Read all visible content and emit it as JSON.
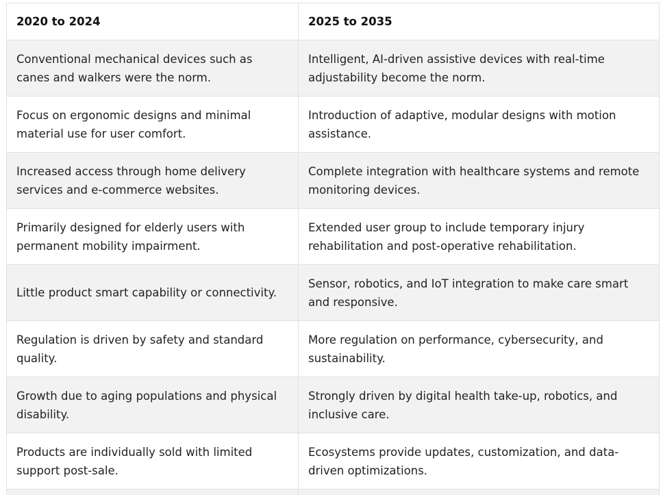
{
  "table": {
    "headers": [
      "2020 to 2024",
      "2025 to 2035"
    ],
    "rows": [
      [
        "Conventional mechanical devices such as canes and walkers were the norm.",
        "Intelligent, AI-driven assistive devices with real-time adjustability become the norm."
      ],
      [
        "Focus on ergonomic designs and minimal material use for user comfort.",
        "Introduction of adaptive, modular designs with motion assistance."
      ],
      [
        "Increased access through home delivery services and e-commerce websites.",
        "Complete integration with healthcare systems and remote monitoring devices."
      ],
      [
        "Primarily designed for elderly users with permanent mobility impairment.",
        "Extended user group to include temporary injury rehabilitation and post-operative rehabilitation."
      ],
      [
        "Little product smart capability or connectivity.",
        "Sensor, robotics, and IoT integration to make care smart and responsive."
      ],
      [
        "Regulation is driven by safety and standard quality.",
        "More regulation on performance, cybersecurity, and sustainability."
      ],
      [
        "Growth due to aging populations and physical disability.",
        "Strongly driven by digital health take-up, robotics, and inclusive care."
      ],
      [
        "Products are individually sold with limited support post-sale.",
        "Ecosystems provide updates, customization, and data-driven optimizations."
      ]
    ]
  },
  "colors": {
    "border": "#e0e0e0",
    "row_shade": "#f2f2f2",
    "row_plain": "#ffffff",
    "text": "#222222"
  }
}
